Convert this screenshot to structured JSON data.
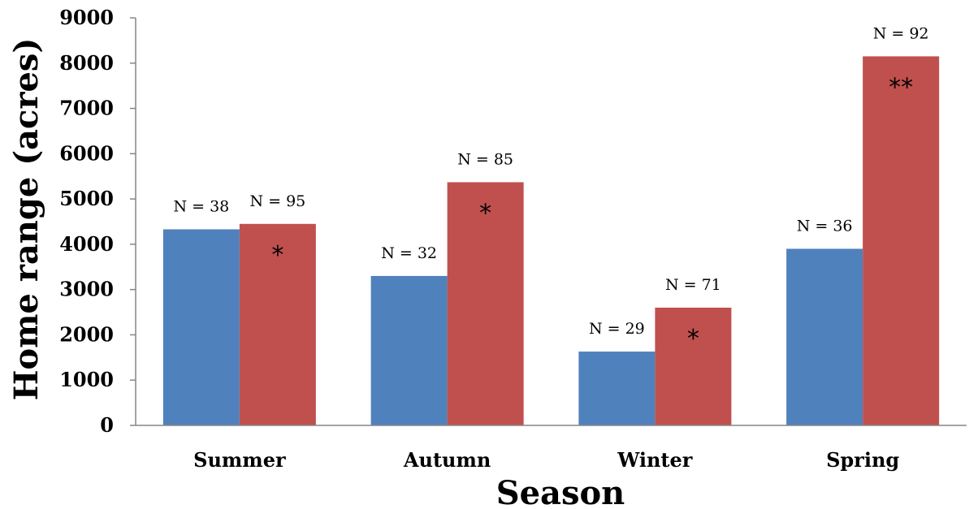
{
  "chart_data": {
    "type": "bar",
    "title": "",
    "xlabel": "Season",
    "ylabel": "Home range (acres)",
    "categories": [
      "Summer",
      "Autumn",
      "Winter",
      "Spring"
    ],
    "ylim": [
      0,
      9000
    ],
    "yticks": [
      0,
      1000,
      2000,
      3000,
      4000,
      5000,
      6000,
      7000,
      8000,
      9000
    ],
    "grid": false,
    "legend": "none",
    "series": [
      {
        "color": "#4F81BD",
        "values": [
          4330,
          3300,
          1630,
          3900
        ],
        "labels": [
          "N = 38",
          "N = 32",
          "N = 29",
          "N = 36"
        ]
      },
      {
        "color": "#C0504D",
        "values": [
          4450,
          5370,
          2600,
          8150
        ],
        "labels": [
          "N = 95",
          "N = 85",
          "N = 71",
          "N = 92"
        ],
        "annotations": [
          "*",
          "*",
          "*",
          "**"
        ]
      }
    ]
  }
}
